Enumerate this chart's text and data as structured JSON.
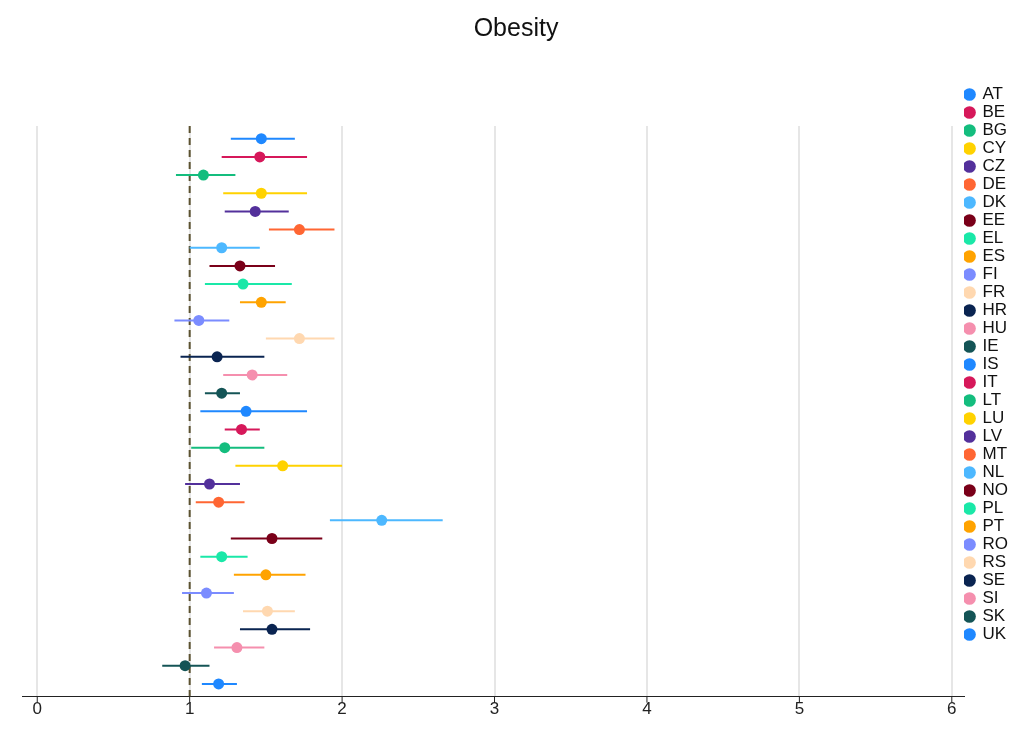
{
  "chart_data": {
    "type": "scatter",
    "title": "Obesity",
    "orientation": "horizontal",
    "tick_labels": "x",
    "grid": "x",
    "legend": "right",
    "marker": "circle",
    "categories": [
      null,
      null,
      null,
      null,
      null,
      null,
      null,
      null,
      null,
      null,
      null,
      null,
      null,
      null,
      null,
      null,
      null,
      null,
      null,
      null,
      null,
      null,
      null,
      null,
      null,
      null,
      null,
      null,
      null,
      null,
      null
    ],
    "xlim": [
      -0.1,
      6.08
    ],
    "xticks": [
      0,
      1,
      2,
      3,
      4,
      5,
      6
    ],
    "ref_lines": [
      {
        "axis": "x",
        "value": 1,
        "color": "#5c5230",
        "line_style": "dashed"
      }
    ],
    "series": [
      {
        "name": "AT",
        "color": "#1f88ff",
        "values": [
          1.47,
          null,
          null,
          null,
          null,
          null,
          null,
          null,
          null,
          null,
          null,
          null,
          null,
          null,
          null,
          null,
          null,
          null,
          null,
          null,
          null,
          null,
          null,
          null,
          null,
          null,
          null,
          null,
          null,
          null,
          null
        ],
        "errors": [
          [
            1.27,
            1.69
          ],
          null,
          null,
          null,
          null,
          null,
          null,
          null,
          null,
          null,
          null,
          null,
          null,
          null,
          null,
          null,
          null,
          null,
          null,
          null,
          null,
          null,
          null,
          null,
          null,
          null,
          null,
          null,
          null,
          null,
          null
        ]
      },
      {
        "name": "BE",
        "color": "#d6185a",
        "values": [
          null,
          1.46,
          null,
          null,
          null,
          null,
          null,
          null,
          null,
          null,
          null,
          null,
          null,
          null,
          null,
          null,
          null,
          null,
          null,
          null,
          null,
          null,
          null,
          null,
          null,
          null,
          null,
          null,
          null,
          null,
          null
        ],
        "errors": [
          null,
          [
            1.21,
            1.77
          ],
          null,
          null,
          null,
          null,
          null,
          null,
          null,
          null,
          null,
          null,
          null,
          null,
          null,
          null,
          null,
          null,
          null,
          null,
          null,
          null,
          null,
          null,
          null,
          null,
          null,
          null,
          null,
          null,
          null
        ]
      },
      {
        "name": "BG",
        "color": "#14bd7e",
        "values": [
          null,
          null,
          1.09,
          null,
          null,
          null,
          null,
          null,
          null,
          null,
          null,
          null,
          null,
          null,
          null,
          null,
          null,
          null,
          null,
          null,
          null,
          null,
          null,
          null,
          null,
          null,
          null,
          null,
          null,
          null,
          null
        ],
        "errors": [
          null,
          null,
          [
            0.91,
            1.3
          ],
          null,
          null,
          null,
          null,
          null,
          null,
          null,
          null,
          null,
          null,
          null,
          null,
          null,
          null,
          null,
          null,
          null,
          null,
          null,
          null,
          null,
          null,
          null,
          null,
          null,
          null,
          null,
          null
        ]
      },
      {
        "name": "CY",
        "color": "#ffd200",
        "values": [
          null,
          null,
          null,
          1.47,
          null,
          null,
          null,
          null,
          null,
          null,
          null,
          null,
          null,
          null,
          null,
          null,
          null,
          null,
          null,
          null,
          null,
          null,
          null,
          null,
          null,
          null,
          null,
          null,
          null,
          null,
          null
        ],
        "errors": [
          null,
          null,
          null,
          [
            1.22,
            1.77
          ],
          null,
          null,
          null,
          null,
          null,
          null,
          null,
          null,
          null,
          null,
          null,
          null,
          null,
          null,
          null,
          null,
          null,
          null,
          null,
          null,
          null,
          null,
          null,
          null,
          null,
          null,
          null
        ]
      },
      {
        "name": "CZ",
        "color": "#53309b",
        "values": [
          null,
          null,
          null,
          null,
          1.43,
          null,
          null,
          null,
          null,
          null,
          null,
          null,
          null,
          null,
          null,
          null,
          null,
          null,
          null,
          null,
          null,
          null,
          null,
          null,
          null,
          null,
          null,
          null,
          null,
          null,
          null
        ],
        "errors": [
          null,
          null,
          null,
          null,
          [
            1.23,
            1.65
          ],
          null,
          null,
          null,
          null,
          null,
          null,
          null,
          null,
          null,
          null,
          null,
          null,
          null,
          null,
          null,
          null,
          null,
          null,
          null,
          null,
          null,
          null,
          null,
          null,
          null,
          null
        ]
      },
      {
        "name": "DE",
        "color": "#ff6633",
        "values": [
          null,
          null,
          null,
          null,
          null,
          1.72,
          null,
          null,
          null,
          null,
          null,
          null,
          null,
          null,
          null,
          null,
          null,
          null,
          null,
          null,
          null,
          null,
          null,
          null,
          null,
          null,
          null,
          null,
          null,
          null,
          null
        ],
        "errors": [
          null,
          null,
          null,
          null,
          null,
          [
            1.52,
            1.95
          ],
          null,
          null,
          null,
          null,
          null,
          null,
          null,
          null,
          null,
          null,
          null,
          null,
          null,
          null,
          null,
          null,
          null,
          null,
          null,
          null,
          null,
          null,
          null,
          null,
          null
        ]
      },
      {
        "name": "DK",
        "color": "#4db8ff",
        "values": [
          null,
          null,
          null,
          null,
          null,
          null,
          1.21,
          null,
          null,
          null,
          null,
          null,
          null,
          null,
          null,
          null,
          null,
          null,
          null,
          null,
          null,
          null,
          null,
          null,
          null,
          null,
          null,
          null,
          null,
          null,
          null
        ],
        "errors": [
          null,
          null,
          null,
          null,
          null,
          null,
          [
            1.0,
            1.46
          ],
          null,
          null,
          null,
          null,
          null,
          null,
          null,
          null,
          null,
          null,
          null,
          null,
          null,
          null,
          null,
          null,
          null,
          null,
          null,
          null,
          null,
          null,
          null,
          null
        ]
      },
      {
        "name": "EE",
        "color": "#7a0019",
        "values": [
          null,
          null,
          null,
          null,
          null,
          null,
          null,
          1.33,
          null,
          null,
          null,
          null,
          null,
          null,
          null,
          null,
          null,
          null,
          null,
          null,
          null,
          null,
          null,
          null,
          null,
          null,
          null,
          null,
          null,
          null,
          null
        ],
        "errors": [
          null,
          null,
          null,
          null,
          null,
          null,
          null,
          [
            1.13,
            1.56
          ],
          null,
          null,
          null,
          null,
          null,
          null,
          null,
          null,
          null,
          null,
          null,
          null,
          null,
          null,
          null,
          null,
          null,
          null,
          null,
          null,
          null,
          null,
          null
        ]
      },
      {
        "name": "EL",
        "color": "#1ae8a8",
        "values": [
          null,
          null,
          null,
          null,
          null,
          null,
          null,
          null,
          1.35,
          null,
          null,
          null,
          null,
          null,
          null,
          null,
          null,
          null,
          null,
          null,
          null,
          null,
          null,
          null,
          null,
          null,
          null,
          null,
          null,
          null,
          null
        ],
        "errors": [
          null,
          null,
          null,
          null,
          null,
          null,
          null,
          null,
          [
            1.1,
            1.67
          ],
          null,
          null,
          null,
          null,
          null,
          null,
          null,
          null,
          null,
          null,
          null,
          null,
          null,
          null,
          null,
          null,
          null,
          null,
          null,
          null,
          null,
          null
        ]
      },
      {
        "name": "ES",
        "color": "#ffa300",
        "values": [
          null,
          null,
          null,
          null,
          null,
          null,
          null,
          null,
          null,
          1.47,
          null,
          null,
          null,
          null,
          null,
          null,
          null,
          null,
          null,
          null,
          null,
          null,
          null,
          null,
          null,
          null,
          null,
          null,
          null,
          null,
          null
        ],
        "errors": [
          null,
          null,
          null,
          null,
          null,
          null,
          null,
          null,
          null,
          [
            1.33,
            1.63
          ],
          null,
          null,
          null,
          null,
          null,
          null,
          null,
          null,
          null,
          null,
          null,
          null,
          null,
          null,
          null,
          null,
          null,
          null,
          null,
          null,
          null
        ]
      },
      {
        "name": "FI",
        "color": "#7b8cff",
        "values": [
          null,
          null,
          null,
          null,
          null,
          null,
          null,
          null,
          null,
          null,
          1.06,
          null,
          null,
          null,
          null,
          null,
          null,
          null,
          null,
          null,
          null,
          null,
          null,
          null,
          null,
          null,
          null,
          null,
          null,
          null,
          null
        ],
        "errors": [
          null,
          null,
          null,
          null,
          null,
          null,
          null,
          null,
          null,
          null,
          [
            0.9,
            1.26
          ],
          null,
          null,
          null,
          null,
          null,
          null,
          null,
          null,
          null,
          null,
          null,
          null,
          null,
          null,
          null,
          null,
          null,
          null,
          null,
          null
        ]
      },
      {
        "name": "FR",
        "color": "#ffd8b0",
        "values": [
          null,
          null,
          null,
          null,
          null,
          null,
          null,
          null,
          null,
          null,
          null,
          1.72,
          null,
          null,
          null,
          null,
          null,
          null,
          null,
          null,
          null,
          null,
          null,
          null,
          null,
          null,
          null,
          null,
          null,
          null,
          null
        ],
        "errors": [
          null,
          null,
          null,
          null,
          null,
          null,
          null,
          null,
          null,
          null,
          null,
          [
            1.5,
            1.95
          ],
          null,
          null,
          null,
          null,
          null,
          null,
          null,
          null,
          null,
          null,
          null,
          null,
          null,
          null,
          null,
          null,
          null,
          null,
          null
        ]
      },
      {
        "name": "HR",
        "color": "#0a2451",
        "values": [
          null,
          null,
          null,
          null,
          null,
          null,
          null,
          null,
          null,
          null,
          null,
          null,
          1.18,
          null,
          null,
          null,
          null,
          null,
          null,
          null,
          null,
          null,
          null,
          null,
          null,
          null,
          null,
          null,
          null,
          null,
          null
        ],
        "errors": [
          null,
          null,
          null,
          null,
          null,
          null,
          null,
          null,
          null,
          null,
          null,
          null,
          [
            0.94,
            1.49
          ],
          null,
          null,
          null,
          null,
          null,
          null,
          null,
          null,
          null,
          null,
          null,
          null,
          null,
          null,
          null,
          null,
          null,
          null
        ]
      },
      {
        "name": "HU",
        "color": "#f58fae",
        "values": [
          null,
          null,
          null,
          null,
          null,
          null,
          null,
          null,
          null,
          null,
          null,
          null,
          null,
          1.41,
          null,
          null,
          null,
          null,
          null,
          null,
          null,
          null,
          null,
          null,
          null,
          null,
          null,
          null,
          null,
          null,
          null
        ],
        "errors": [
          null,
          null,
          null,
          null,
          null,
          null,
          null,
          null,
          null,
          null,
          null,
          null,
          null,
          [
            1.22,
            1.64
          ],
          null,
          null,
          null,
          null,
          null,
          null,
          null,
          null,
          null,
          null,
          null,
          null,
          null,
          null,
          null,
          null,
          null
        ]
      },
      {
        "name": "IE",
        "color": "#145456",
        "values": [
          null,
          null,
          null,
          null,
          null,
          null,
          null,
          null,
          null,
          null,
          null,
          null,
          null,
          null,
          1.21,
          null,
          null,
          null,
          null,
          null,
          null,
          null,
          null,
          null,
          null,
          null,
          null,
          null,
          null,
          null,
          null
        ],
        "errors": [
          null,
          null,
          null,
          null,
          null,
          null,
          null,
          null,
          null,
          null,
          null,
          null,
          null,
          null,
          [
            1.1,
            1.33
          ],
          null,
          null,
          null,
          null,
          null,
          null,
          null,
          null,
          null,
          null,
          null,
          null,
          null,
          null,
          null,
          null
        ]
      },
      {
        "name": "IS",
        "color": "#1f88ff",
        "values": [
          null,
          null,
          null,
          null,
          null,
          null,
          null,
          null,
          null,
          null,
          null,
          null,
          null,
          null,
          null,
          1.37,
          null,
          null,
          null,
          null,
          null,
          null,
          null,
          null,
          null,
          null,
          null,
          null,
          null,
          null,
          null
        ],
        "errors": [
          null,
          null,
          null,
          null,
          null,
          null,
          null,
          null,
          null,
          null,
          null,
          null,
          null,
          null,
          null,
          [
            1.07,
            1.77
          ],
          null,
          null,
          null,
          null,
          null,
          null,
          null,
          null,
          null,
          null,
          null,
          null,
          null,
          null,
          null
        ]
      },
      {
        "name": "IT",
        "color": "#d6185a",
        "values": [
          null,
          null,
          null,
          null,
          null,
          null,
          null,
          null,
          null,
          null,
          null,
          null,
          null,
          null,
          null,
          null,
          1.34,
          null,
          null,
          null,
          null,
          null,
          null,
          null,
          null,
          null,
          null,
          null,
          null,
          null,
          null
        ],
        "errors": [
          null,
          null,
          null,
          null,
          null,
          null,
          null,
          null,
          null,
          null,
          null,
          null,
          null,
          null,
          null,
          null,
          [
            1.23,
            1.46
          ],
          null,
          null,
          null,
          null,
          null,
          null,
          null,
          null,
          null,
          null,
          null,
          null,
          null,
          null
        ]
      },
      {
        "name": "LT",
        "color": "#14bd7e",
        "values": [
          null,
          null,
          null,
          null,
          null,
          null,
          null,
          null,
          null,
          null,
          null,
          null,
          null,
          null,
          null,
          null,
          null,
          1.23,
          null,
          null,
          null,
          null,
          null,
          null,
          null,
          null,
          null,
          null,
          null,
          null,
          null
        ],
        "errors": [
          null,
          null,
          null,
          null,
          null,
          null,
          null,
          null,
          null,
          null,
          null,
          null,
          null,
          null,
          null,
          null,
          null,
          [
            1.01,
            1.49
          ],
          null,
          null,
          null,
          null,
          null,
          null,
          null,
          null,
          null,
          null,
          null,
          null,
          null
        ]
      },
      {
        "name": "LU",
        "color": "#ffd200",
        "values": [
          null,
          null,
          null,
          null,
          null,
          null,
          null,
          null,
          null,
          null,
          null,
          null,
          null,
          null,
          null,
          null,
          null,
          null,
          1.61,
          null,
          null,
          null,
          null,
          null,
          null,
          null,
          null,
          null,
          null,
          null,
          null
        ],
        "errors": [
          null,
          null,
          null,
          null,
          null,
          null,
          null,
          null,
          null,
          null,
          null,
          null,
          null,
          null,
          null,
          null,
          null,
          null,
          [
            1.3,
            2.0
          ],
          null,
          null,
          null,
          null,
          null,
          null,
          null,
          null,
          null,
          null,
          null,
          null
        ]
      },
      {
        "name": "LV",
        "color": "#53309b",
        "values": [
          null,
          null,
          null,
          null,
          null,
          null,
          null,
          null,
          null,
          null,
          null,
          null,
          null,
          null,
          null,
          null,
          null,
          null,
          null,
          1.13,
          null,
          null,
          null,
          null,
          null,
          null,
          null,
          null,
          null,
          null,
          null
        ],
        "errors": [
          null,
          null,
          null,
          null,
          null,
          null,
          null,
          null,
          null,
          null,
          null,
          null,
          null,
          null,
          null,
          null,
          null,
          null,
          null,
          [
            0.97,
            1.33
          ],
          null,
          null,
          null,
          null,
          null,
          null,
          null,
          null,
          null,
          null,
          null
        ]
      },
      {
        "name": "MT",
        "color": "#ff6633",
        "values": [
          null,
          null,
          null,
          null,
          null,
          null,
          null,
          null,
          null,
          null,
          null,
          null,
          null,
          null,
          null,
          null,
          null,
          null,
          null,
          null,
          1.19,
          null,
          null,
          null,
          null,
          null,
          null,
          null,
          null,
          null,
          null
        ],
        "errors": [
          null,
          null,
          null,
          null,
          null,
          null,
          null,
          null,
          null,
          null,
          null,
          null,
          null,
          null,
          null,
          null,
          null,
          null,
          null,
          null,
          [
            1.04,
            1.36
          ],
          null,
          null,
          null,
          null,
          null,
          null,
          null,
          null,
          null,
          null
        ]
      },
      {
        "name": "NL",
        "color": "#4db8ff",
        "values": [
          null,
          null,
          null,
          null,
          null,
          null,
          null,
          null,
          null,
          null,
          null,
          null,
          null,
          null,
          null,
          null,
          null,
          null,
          null,
          null,
          null,
          2.26,
          null,
          null,
          null,
          null,
          null,
          null,
          null,
          null,
          null
        ],
        "errors": [
          null,
          null,
          null,
          null,
          null,
          null,
          null,
          null,
          null,
          null,
          null,
          null,
          null,
          null,
          null,
          null,
          null,
          null,
          null,
          null,
          null,
          [
            1.92,
            2.66
          ],
          null,
          null,
          null,
          null,
          null,
          null,
          null,
          null,
          null
        ]
      },
      {
        "name": "NO",
        "color": "#7a0019",
        "values": [
          null,
          null,
          null,
          null,
          null,
          null,
          null,
          null,
          null,
          null,
          null,
          null,
          null,
          null,
          null,
          null,
          null,
          null,
          null,
          null,
          null,
          null,
          1.54,
          null,
          null,
          null,
          null,
          null,
          null,
          null,
          null
        ],
        "errors": [
          null,
          null,
          null,
          null,
          null,
          null,
          null,
          null,
          null,
          null,
          null,
          null,
          null,
          null,
          null,
          null,
          null,
          null,
          null,
          null,
          null,
          null,
          [
            1.27,
            1.87
          ],
          null,
          null,
          null,
          null,
          null,
          null,
          null,
          null
        ]
      },
      {
        "name": "PL",
        "color": "#1ae8a8",
        "values": [
          null,
          null,
          null,
          null,
          null,
          null,
          null,
          null,
          null,
          null,
          null,
          null,
          null,
          null,
          null,
          null,
          null,
          null,
          null,
          null,
          null,
          null,
          null,
          1.21,
          null,
          null,
          null,
          null,
          null,
          null,
          null
        ],
        "errors": [
          null,
          null,
          null,
          null,
          null,
          null,
          null,
          null,
          null,
          null,
          null,
          null,
          null,
          null,
          null,
          null,
          null,
          null,
          null,
          null,
          null,
          null,
          null,
          [
            1.07,
            1.38
          ],
          null,
          null,
          null,
          null,
          null,
          null,
          null
        ]
      },
      {
        "name": "PT",
        "color": "#ffa300",
        "values": [
          null,
          null,
          null,
          null,
          null,
          null,
          null,
          null,
          null,
          null,
          null,
          null,
          null,
          null,
          null,
          null,
          null,
          null,
          null,
          null,
          null,
          null,
          null,
          null,
          1.5,
          null,
          null,
          null,
          null,
          null,
          null
        ],
        "errors": [
          null,
          null,
          null,
          null,
          null,
          null,
          null,
          null,
          null,
          null,
          null,
          null,
          null,
          null,
          null,
          null,
          null,
          null,
          null,
          null,
          null,
          null,
          null,
          null,
          [
            1.29,
            1.76
          ],
          null,
          null,
          null,
          null,
          null,
          null
        ]
      },
      {
        "name": "RO",
        "color": "#7b8cff",
        "values": [
          null,
          null,
          null,
          null,
          null,
          null,
          null,
          null,
          null,
          null,
          null,
          null,
          null,
          null,
          null,
          null,
          null,
          null,
          null,
          null,
          null,
          null,
          null,
          null,
          null,
          1.11,
          null,
          null,
          null,
          null,
          null
        ],
        "errors": [
          null,
          null,
          null,
          null,
          null,
          null,
          null,
          null,
          null,
          null,
          null,
          null,
          null,
          null,
          null,
          null,
          null,
          null,
          null,
          null,
          null,
          null,
          null,
          null,
          null,
          [
            0.95,
            1.29
          ],
          null,
          null,
          null,
          null,
          null
        ]
      },
      {
        "name": "RS",
        "color": "#ffd8b0",
        "values": [
          null,
          null,
          null,
          null,
          null,
          null,
          null,
          null,
          null,
          null,
          null,
          null,
          null,
          null,
          null,
          null,
          null,
          null,
          null,
          null,
          null,
          null,
          null,
          null,
          null,
          null,
          1.51,
          null,
          null,
          null,
          null
        ],
        "errors": [
          null,
          null,
          null,
          null,
          null,
          null,
          null,
          null,
          null,
          null,
          null,
          null,
          null,
          null,
          null,
          null,
          null,
          null,
          null,
          null,
          null,
          null,
          null,
          null,
          null,
          null,
          [
            1.35,
            1.69
          ],
          null,
          null,
          null,
          null
        ]
      },
      {
        "name": "SE",
        "color": "#0a2451",
        "values": [
          null,
          null,
          null,
          null,
          null,
          null,
          null,
          null,
          null,
          null,
          null,
          null,
          null,
          null,
          null,
          null,
          null,
          null,
          null,
          null,
          null,
          null,
          null,
          null,
          null,
          null,
          null,
          1.54,
          null,
          null,
          null
        ],
        "errors": [
          null,
          null,
          null,
          null,
          null,
          null,
          null,
          null,
          null,
          null,
          null,
          null,
          null,
          null,
          null,
          null,
          null,
          null,
          null,
          null,
          null,
          null,
          null,
          null,
          null,
          null,
          null,
          [
            1.33,
            1.79
          ],
          null,
          null,
          null
        ]
      },
      {
        "name": "SI",
        "color": "#f58fae",
        "values": [
          null,
          null,
          null,
          null,
          null,
          null,
          null,
          null,
          null,
          null,
          null,
          null,
          null,
          null,
          null,
          null,
          null,
          null,
          null,
          null,
          null,
          null,
          null,
          null,
          null,
          null,
          null,
          null,
          1.31,
          null,
          null
        ],
        "errors": [
          null,
          null,
          null,
          null,
          null,
          null,
          null,
          null,
          null,
          null,
          null,
          null,
          null,
          null,
          null,
          null,
          null,
          null,
          null,
          null,
          null,
          null,
          null,
          null,
          null,
          null,
          null,
          null,
          [
            1.16,
            1.49
          ],
          null,
          null
        ]
      },
      {
        "name": "SK",
        "color": "#145456",
        "values": [
          null,
          null,
          null,
          null,
          null,
          null,
          null,
          null,
          null,
          null,
          null,
          null,
          null,
          null,
          null,
          null,
          null,
          null,
          null,
          null,
          null,
          null,
          null,
          null,
          null,
          null,
          null,
          null,
          null,
          0.97,
          null
        ],
        "errors": [
          null,
          null,
          null,
          null,
          null,
          null,
          null,
          null,
          null,
          null,
          null,
          null,
          null,
          null,
          null,
          null,
          null,
          null,
          null,
          null,
          null,
          null,
          null,
          null,
          null,
          null,
          null,
          null,
          null,
          [
            0.82,
            1.13
          ],
          null
        ]
      },
      {
        "name": "UK",
        "color": "#1f88ff",
        "values": [
          null,
          null,
          null,
          null,
          null,
          null,
          null,
          null,
          null,
          null,
          null,
          null,
          null,
          null,
          null,
          null,
          null,
          null,
          null,
          null,
          null,
          null,
          null,
          null,
          null,
          null,
          null,
          null,
          null,
          null,
          1.19
        ],
        "errors": [
          null,
          null,
          null,
          null,
          null,
          null,
          null,
          null,
          null,
          null,
          null,
          null,
          null,
          null,
          null,
          null,
          null,
          null,
          null,
          null,
          null,
          null,
          null,
          null,
          null,
          null,
          null,
          null,
          null,
          null,
          [
            1.08,
            1.31
          ]
        ]
      }
    ]
  }
}
